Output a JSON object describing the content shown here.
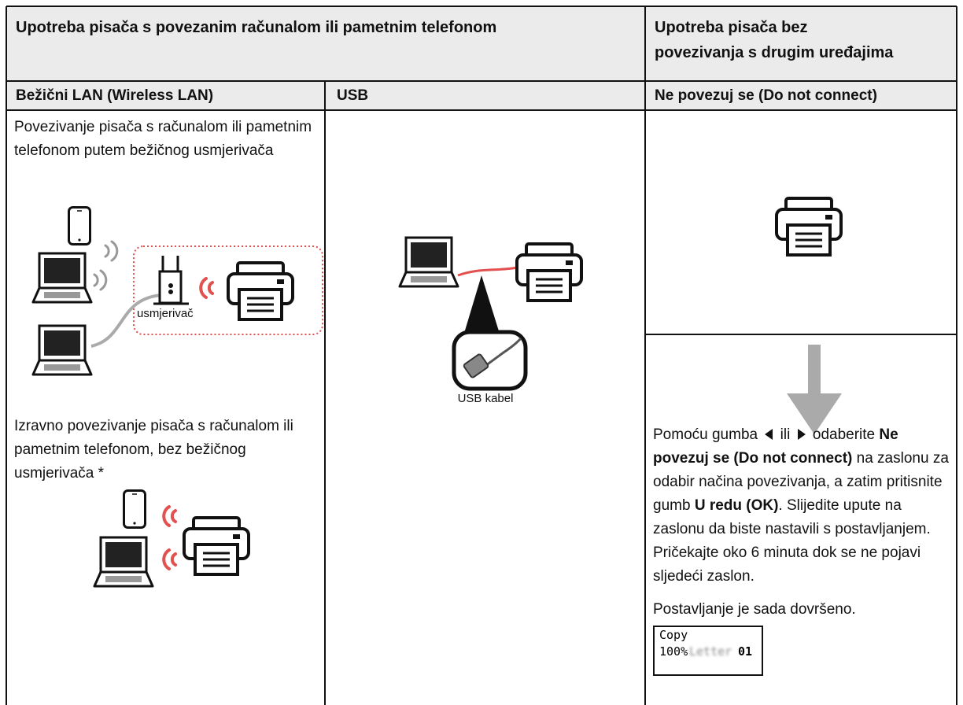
{
  "header": {
    "connected": "Upotreba pisača s povezanim računalom ili pametnim telefonom",
    "standalone": [
      "Upotreba pisača bez",
      "povezivanja s drugim uređajima"
    ]
  },
  "wireless": {
    "heading": "Bežični LAN (Wireless LAN)",
    "router_text": "Povezivanje pisača s računalom ili pametnim telefonom putem bežičnog usmjerivača",
    "router_label": "usmjerivač",
    "direct_text": "Izravno povezivanje pisača s računalom ili pametnim telefonom, bez bežičnog usmjerivača *"
  },
  "usb": {
    "heading": "USB",
    "cable_label": "USB kabel"
  },
  "standalone": {
    "heading": "Ne povezuj se (Do not connect)",
    "instructions": [
      "Pomoću gumba",
      "ili",
      "odaberite",
      "Ne povezuj se (Do not connect)",
      "na zaslonu za odabir načina povezivanja, a zatim pritisnite gumb",
      "U redu (OK)",
      ". Slijedite upute na zaslonu da biste nastavili s postavljanjem. Pričekajte oko 6 minuta dok se ne pojavi sljedeći zaslon."
    ],
    "done": "Postavljanje je sada dovršeno.",
    "screen": {
      "mode": "Copy",
      "zoom": "100%",
      "paper": "Letter",
      "copies": "01"
    }
  }
}
